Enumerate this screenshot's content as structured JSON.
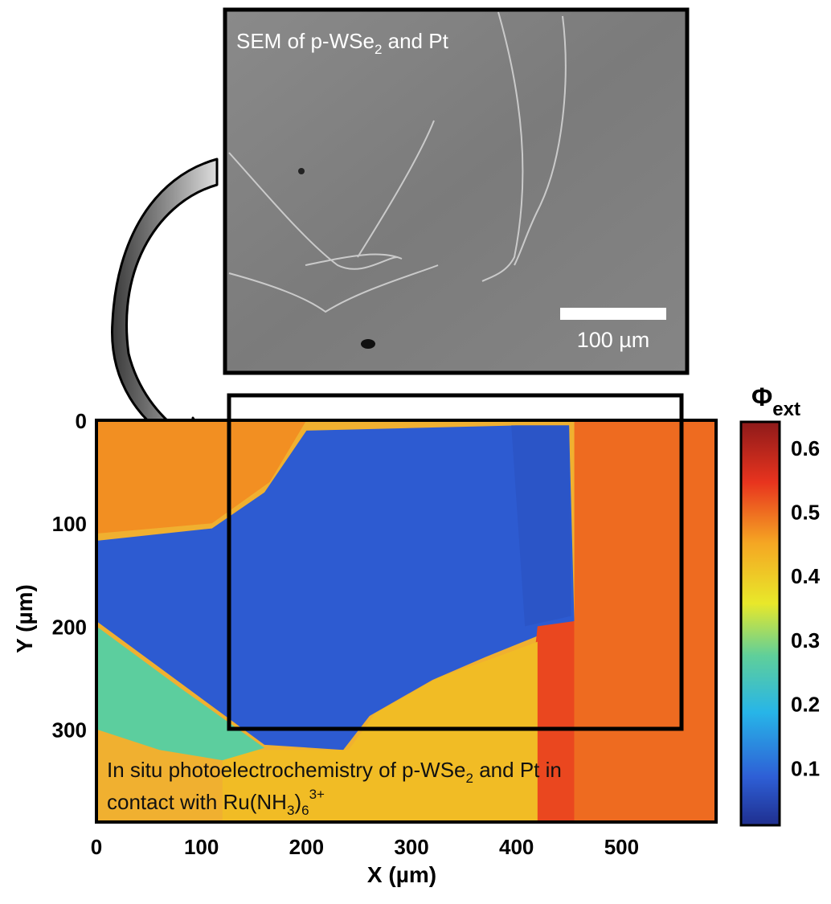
{
  "sem_panel": {
    "title_prefix": "SEM of p-WSe",
    "title_sub": "2",
    "title_suffix": " and Pt",
    "scale_bar_label": "100 µm"
  },
  "caption": {
    "line1_prefix": "In situ photoelectrochemistry of p-WSe",
    "line1_sub": "2",
    "line1_suffix": " and Pt in",
    "line2_prefix": "contact with Ru(NH",
    "line2_sub": "3",
    "line2_mid": ")",
    "line2_sub2": "6",
    "line2_sup": "3+"
  },
  "chart_data": {
    "type": "heatmap",
    "xlabel": "X (µm)",
    "ylabel": "Y (µm)",
    "colorbar_label_main": "Φ",
    "colorbar_label_sub": "ext",
    "xlim": [
      0,
      590
    ],
    "ylim": [
      0,
      390
    ],
    "y_inverted": true,
    "x_ticks": [
      0,
      100,
      200,
      300,
      400,
      500
    ],
    "y_ticks": [
      0,
      100,
      200,
      300
    ],
    "colorbar_range": [
      0.01,
      0.64
    ],
    "colorbar_ticks": [
      0.1,
      0.2,
      0.3,
      0.4,
      0.5,
      0.6
    ],
    "colormap": "jet",
    "grid_step_um": 10,
    "regions": [
      {
        "label": "p-WSe2 region left",
        "value": 0.08,
        "polygon": [
          [
            0,
            117
          ],
          [
            110,
            105
          ],
          [
            160,
            70
          ],
          [
            200,
            10
          ],
          [
            400,
            5
          ],
          [
            450,
            5
          ],
          [
            455,
            195
          ],
          [
            370,
            230
          ],
          [
            320,
            252
          ],
          [
            260,
            287
          ],
          [
            235,
            320
          ],
          [
            160,
            315
          ],
          [
            80,
            255
          ],
          [
            0,
            195
          ]
        ]
      },
      {
        "label": "dark strip",
        "value": 0.07,
        "polygon": [
          [
            395,
            5
          ],
          [
            450,
            5
          ],
          [
            452,
            190
          ],
          [
            408,
            200
          ]
        ]
      },
      {
        "label": "Pt region right",
        "value": 0.5,
        "polygon": [
          [
            455,
            0
          ],
          [
            590,
            0
          ],
          [
            590,
            390
          ],
          [
            455,
            390
          ]
        ]
      },
      {
        "label": "lower right warm",
        "value": 0.53,
        "polygon": [
          [
            420,
            200
          ],
          [
            455,
            195
          ],
          [
            455,
            390
          ],
          [
            400,
            390
          ]
        ]
      },
      {
        "label": "upper left warm",
        "value": 0.47,
        "polygon": [
          [
            0,
            0
          ],
          [
            200,
            0
          ],
          [
            165,
            60
          ],
          [
            110,
            100
          ],
          [
            0,
            110
          ]
        ]
      },
      {
        "label": "lower middle yellow",
        "value": 0.42,
        "polygon": [
          [
            240,
            320
          ],
          [
            265,
            285
          ],
          [
            325,
            250
          ],
          [
            375,
            232
          ],
          [
            420,
            215
          ],
          [
            420,
            390
          ],
          [
            120,
            390
          ],
          [
            120,
            320
          ]
        ]
      },
      {
        "label": "lower left cyan",
        "value": 0.27,
        "polygon": [
          [
            0,
            200
          ],
          [
            80,
            260
          ],
          [
            160,
            318
          ],
          [
            120,
            330
          ],
          [
            60,
            320
          ],
          [
            0,
            300
          ]
        ]
      }
    ]
  }
}
